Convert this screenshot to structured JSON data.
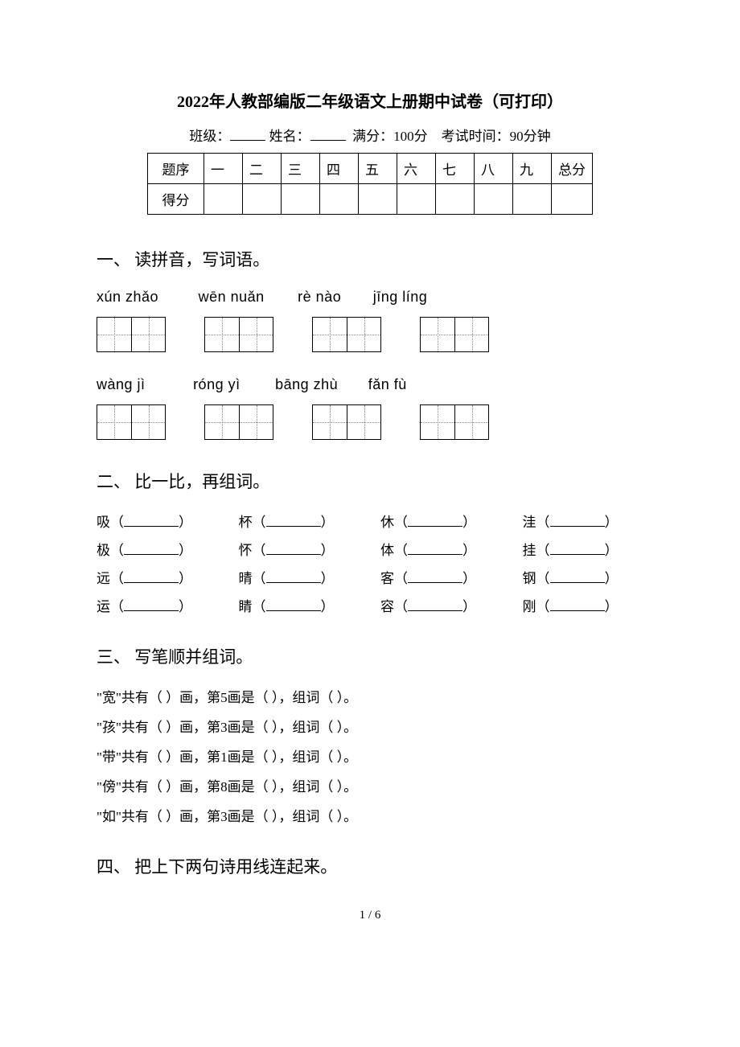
{
  "colors": {
    "text": "#000000",
    "bg": "#ffffff",
    "dotted": "#888888"
  },
  "fonts": {
    "body": "SimSun, 宋体, serif",
    "pinyin": "Arial, sans-serif",
    "title_size": 20,
    "heading_size": 21,
    "body_size": 17
  },
  "title": "2022年人教部编版二年级语文上册期中试卷（可打印）",
  "info": {
    "class_label": "班级：",
    "name_label": "姓名：",
    "full_score": "满分：100分",
    "time": "考试时间：90分钟"
  },
  "score_table": {
    "row1_label": "题序",
    "row2_label": "得分",
    "cols": [
      "一",
      "二",
      "三",
      "四",
      "五",
      "六",
      "七",
      "八",
      "九",
      "总分"
    ]
  },
  "sections": {
    "one": "一、 读拼音，写词语。",
    "two": "二、 比一比，再组词。",
    "three": "三、 写笔顺并组词。",
    "four": "四、 把上下两句诗用线连起来。"
  },
  "pinyin_rows": [
    {
      "items": [
        "xún  zhǎo",
        "wēn  nuǎn",
        "rè   nào",
        "jīng  líng"
      ],
      "gaps": [
        0,
        44,
        36,
        34
      ]
    },
    {
      "items": [
        "wàng  jì",
        "róng  yì",
        "bāng  zhù",
        "fǎn  fù"
      ],
      "gaps": [
        0,
        54,
        38,
        32
      ]
    }
  ],
  "compare": {
    "rows": [
      [
        "吸",
        "杯",
        "休",
        "洼"
      ],
      [
        "极",
        "怀",
        "体",
        "挂"
      ],
      [
        "远",
        "晴",
        "客",
        "钢"
      ],
      [
        "运",
        "睛",
        "容",
        "刚"
      ]
    ]
  },
  "stroke": {
    "lines": [
      {
        "char": "宽",
        "nth": "5"
      },
      {
        "char": "孩",
        "nth": "3"
      },
      {
        "char": "带",
        "nth": "1"
      },
      {
        "char": "傍",
        "nth": "8"
      },
      {
        "char": "如",
        "nth": "3"
      }
    ],
    "t1a": "\"",
    "t1b": "\"共有（    ）画，第",
    "t1c": "画是（    ），组词（        ）。"
  },
  "page_number": "1 / 6"
}
